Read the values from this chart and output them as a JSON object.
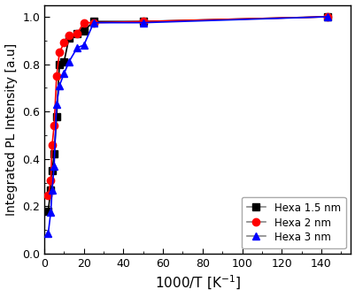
{
  "hexa_1_5nm": {
    "x": [
      2.0,
      3.3,
      4.0,
      5.0,
      6.25,
      7.7,
      10.0,
      12.5,
      16.7,
      20.0,
      25.0,
      50.0,
      143.0
    ],
    "y": [
      0.18,
      0.27,
      0.35,
      0.42,
      0.58,
      0.8,
      0.81,
      0.91,
      0.93,
      0.94,
      0.98,
      0.98,
      1.0
    ],
    "color": "#000000",
    "marker": "s",
    "label": "Hexa 1.5 nm",
    "linestyle": "-"
  },
  "hexa_2nm": {
    "x": [
      2.0,
      3.3,
      4.0,
      5.0,
      6.25,
      7.7,
      10.0,
      12.5,
      16.7,
      20.0,
      25.0,
      50.0,
      143.0
    ],
    "y": [
      0.245,
      0.31,
      0.46,
      0.54,
      0.75,
      0.85,
      0.89,
      0.92,
      0.93,
      0.975,
      0.975,
      0.98,
      1.0
    ],
    "color": "#ff0000",
    "marker": "o",
    "label": "Hexa 2 nm",
    "linestyle": "-"
  },
  "hexa_3nm": {
    "x": [
      2.0,
      3.3,
      4.0,
      5.0,
      6.25,
      7.7,
      10.0,
      12.5,
      16.7,
      20.0,
      25.0,
      50.0,
      143.0
    ],
    "y": [
      0.085,
      0.175,
      0.27,
      0.37,
      0.63,
      0.71,
      0.76,
      0.81,
      0.87,
      0.88,
      0.975,
      0.975,
      1.0
    ],
    "color": "#0000ff",
    "marker": "^",
    "label": "Hexa 3 nm",
    "linestyle": "-"
  },
  "xlabel": "1000/T [K$^{-1}$]",
  "ylabel": "Integrated PL Intensity [a.u]",
  "xlim": [
    0,
    155
  ],
  "ylim": [
    0.0,
    1.05
  ],
  "xticks": [
    0,
    20,
    40,
    60,
    80,
    100,
    120,
    140
  ],
  "yticks": [
    0.0,
    0.2,
    0.4,
    0.6,
    0.8,
    1.0
  ],
  "legend_loc": "lower right",
  "markersize": 6,
  "linewidth": 1.2,
  "background_color": "#ffffff"
}
